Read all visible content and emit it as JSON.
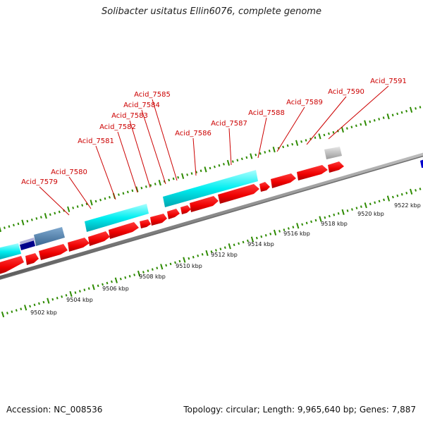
{
  "title": "Solibacter usitatus Ellin6076, complete genome",
  "footer": {
    "accession": "Accession: NC_008536",
    "topology": "Topology: circular; Length: 9,965,640 bp; Genes: 7,887"
  },
  "scale_labels": [
    "9502 kbp",
    "9504 kbp",
    "9506 kbp",
    "9508 kbp",
    "9510 kbp",
    "9512 kbp",
    "9514 kbp",
    "9516 kbp",
    "9518 kbp",
    "9520 kbp",
    "9522 kbp"
  ],
  "gene_labels": [
    "Acid_7579",
    "Acid_7580",
    "Acid_7581",
    "Acid_7582",
    "Acid_7583",
    "Acid_7584",
    "Acid_7585",
    "Acid_7586",
    "Acid_7587",
    "Acid_7588",
    "Acid_7589",
    "Acid_7590",
    "Acid_7591"
  ],
  "colors": {
    "cds": "#ff0000",
    "cds_dark": "#b80000",
    "rna": "#00e5ee",
    "backbone": "#888888",
    "tick": "#2e8b00",
    "label": "#cc0000",
    "other": "#4682b4",
    "pseudo": "#c0c0c0",
    "misc": "#00008b"
  }
}
